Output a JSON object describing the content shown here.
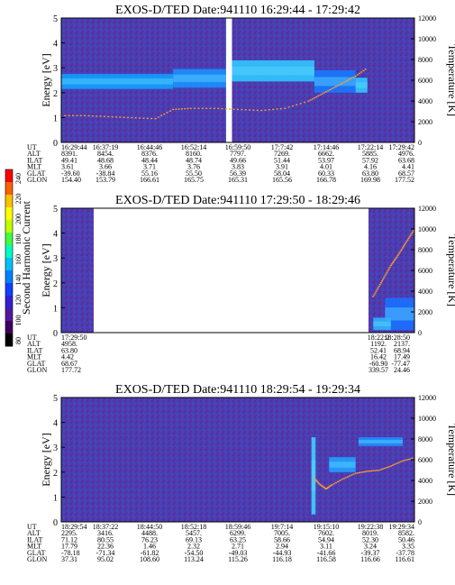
{
  "colorbar": {
    "label": "Second Harmonic Current",
    "ticks": [
      "240",
      "220",
      "200",
      "180",
      "160",
      "140",
      "120",
      "100",
      "80"
    ]
  },
  "panels": [
    {
      "title": "EXOS-D/TED   Date:941110   16:29:44 - 17:29:42",
      "ylabel": "Energy [eV]",
      "y2label": "Temperature [K]",
      "yticks": [
        "5",
        "4",
        "3",
        "2",
        "1",
        "0"
      ],
      "y2ticks": [
        "12000",
        "10000",
        "8000",
        "6000",
        "4000",
        "2000",
        "0"
      ],
      "orbit": {
        "labels": [
          "UT",
          "ALT",
          "ILAT",
          "MLT",
          "GLAT",
          "GLON"
        ],
        "columns": [
          [
            "16:29:44",
            "8391.",
            "49.41",
            "3.61",
            "-39.60",
            "154.40"
          ],
          [
            "16:37:19",
            "8454.",
            "48.68",
            "3.66",
            "-38.84",
            "153.79"
          ],
          [
            "16:44:46",
            "8376.",
            "48.44",
            "3.71",
            "55.16",
            "166.61"
          ],
          [
            "16:52:14",
            "8160.",
            "48.74",
            "3.76",
            "55.50",
            "165.75"
          ],
          [
            "16:59:50",
            "7797.",
            "49.66",
            "3.83",
            "56.39",
            "165.31"
          ],
          [
            "17:7:42",
            "7269.",
            "51.44",
            "3.91",
            "58.04",
            "165.56"
          ],
          [
            "17:14:46",
            "6662.",
            "53.97",
            "4.01",
            "60.33",
            "166.78"
          ],
          [
            "17:22:14",
            "5885.",
            "57.92",
            "4.16",
            "63.80",
            "169.98"
          ],
          [
            "17:29:42",
            "4976.",
            "63.68",
            "4.41",
            "68.57",
            "177.52"
          ]
        ]
      }
    },
    {
      "title": "EXOS-D/TED   Date:941110   17:29:50 - 18:29:46",
      "ylabel": "Energy [eV]",
      "y2label": "Temperature [K]",
      "yticks": [
        "5",
        "4",
        "3",
        "2",
        "1",
        "0"
      ],
      "y2ticks": [
        "12000",
        "10000",
        "8000",
        "6000",
        "4000",
        "2000",
        "0"
      ],
      "orbit": {
        "labels": [
          "UT",
          "ALT",
          "ILAT",
          "MLT",
          "GLAT",
          "GLON"
        ],
        "columns": [
          [
            "17:29:50",
            "4958.",
            "63.80",
            "4.42",
            "68.67",
            "177.72"
          ],
          [
            "18:22:2",
            "1192.",
            "52.41",
            "16.42",
            "-60.90",
            "339.57"
          ],
          [
            "18:28:50",
            "2137.",
            "68.94",
            "17.49",
            "-77.47",
            "24.46"
          ]
        ]
      }
    },
    {
      "title": "EXOS-D/TED   Date:941110   18:29:54 - 19:29:34",
      "ylabel": "Energy [eV]",
      "y2label": "Temperature [K]",
      "yticks": [
        "5",
        "4",
        "3",
        "2",
        "1",
        "0"
      ],
      "y2ticks": [
        "12000",
        "10000",
        "8000",
        "6000",
        "4000",
        "2000",
        "0"
      ],
      "orbit": {
        "labels": [
          "UT",
          "ALT",
          "ILAT",
          "MLT",
          "GLAT",
          "GLON"
        ],
        "columns": [
          [
            "18:29:54",
            "2295.",
            "71.12",
            "17.79",
            "-78.18",
            "37.31"
          ],
          [
            "18:37:22",
            "3416.",
            "80.55",
            "22.36",
            "-71.34",
            "95.02"
          ],
          [
            "18:44:50",
            "4488.",
            "76.23",
            "1.46",
            "-61.82",
            "108.60"
          ],
          [
            "18:52:18",
            "5457.",
            "69.13",
            "2.32",
            "-54.50",
            "113.24"
          ],
          [
            "18:59:46",
            "6299.",
            "63.25",
            "2.71",
            "-49.03",
            "115.26"
          ],
          [
            "19:7:14",
            "7005.",
            "58.66",
            "2.94",
            "-44.93",
            "116.18"
          ],
          [
            "19:15:10",
            "7602.",
            "54.94",
            "3.11",
            "-41.66",
            "116.58"
          ],
          [
            "19:22:38",
            "8019.",
            "52.30",
            "3.24",
            "-39.37",
            "116.66"
          ],
          [
            "19:29:34",
            "8582.",
            "50.46",
            "3.35",
            "-37.78",
            "116.61"
          ]
        ]
      }
    }
  ],
  "chart_data": [
    {
      "type": "heatmap",
      "title": "EXOS-D/TED   Date:941110   16:29:44 - 17:29:42",
      "ylabel": "Energy [eV]",
      "y2label": "Temperature [K]",
      "ylim": [
        0,
        5
      ],
      "y2lim": [
        0,
        12000
      ],
      "x_ticks": [
        "16:29:44",
        "16:37:19",
        "16:44:46",
        "16:52:14",
        "16:59:50",
        "17:7:42",
        "17:14:46",
        "17:22:14",
        "17:29:42"
      ],
      "x_range": [
        0,
        60
      ],
      "bands": [
        {
          "x": [
            0,
            19
          ],
          "e": [
            2.15,
            2.75
          ],
          "color": "#12a0ff"
        },
        {
          "x": [
            19,
            28
          ],
          "e": [
            2.2,
            2.95
          ],
          "color": "#1a90ff"
        },
        {
          "x": [
            29,
            43
          ],
          "e": [
            2.45,
            3.3
          ],
          "color": "#30c8ff"
        },
        {
          "x": [
            43,
            50
          ],
          "e": [
            2.0,
            2.9
          ],
          "color": "#1878ff"
        },
        {
          "x": [
            50,
            52
          ],
          "e": [
            2.0,
            2.6
          ],
          "color": "#30c8ff"
        }
      ],
      "gaps": [
        [
          28,
          29
        ]
      ],
      "temperature": {
        "minutes": [
          0,
          4,
          8,
          12,
          16,
          19,
          22,
          26,
          30,
          34,
          38,
          42,
          44,
          46,
          48,
          50,
          52
        ],
        "kelvin": [
          2600,
          2600,
          2500,
          2400,
          2300,
          3200,
          3300,
          3300,
          3200,
          3100,
          3300,
          4000,
          4600,
          5200,
          5800,
          6400,
          7200
        ]
      }
    },
    {
      "type": "heatmap",
      "title": "EXOS-D/TED   Date:941110   17:29:50 - 18:29:46",
      "ylabel": "Energy [eV]",
      "y2label": "Temperature [K]",
      "ylim": [
        0,
        5
      ],
      "y2lim": [
        0,
        12000
      ],
      "x_ticks": [
        "17:29:50",
        "18:22:2",
        "18:28:50"
      ],
      "x_range": [
        0,
        60
      ],
      "data_segments": [
        [
          0,
          5.5
        ],
        [
          52.2,
          60
        ]
      ],
      "bands": [
        {
          "x": [
            55,
            60
          ],
          "e": [
            0.1,
            1.4
          ],
          "color": "#1a70ff"
        },
        {
          "x": [
            53,
            56
          ],
          "e": [
            0.1,
            0.6
          ],
          "color": "#30b0ff"
        }
      ],
      "temperature": {
        "minutes": [
          53,
          54,
          55,
          56,
          57,
          58,
          59,
          60
        ],
        "kelvin": [
          3500,
          4500,
          5500,
          6500,
          7300,
          8200,
          9100,
          10000
        ]
      }
    },
    {
      "type": "heatmap",
      "title": "EXOS-D/TED   Date:941110   18:29:54 - 19:29:34",
      "ylabel": "Energy [eV]",
      "y2label": "Temperature [K]",
      "ylim": [
        0,
        5
      ],
      "y2lim": [
        0,
        12000
      ],
      "x_ticks": [
        "18:29:54",
        "18:37:22",
        "18:44:50",
        "18:52:18",
        "18:59:46",
        "19:7:14",
        "19:15:10",
        "19:22:38",
        "19:29:34"
      ],
      "x_range": [
        0,
        60
      ],
      "bands": [
        {
          "x": [
            42.5,
            43.2
          ],
          "e": [
            0.3,
            3.4
          ],
          "color": "#40d0ff"
        },
        {
          "x": [
            45.5,
            50
          ],
          "e": [
            2.0,
            2.6
          ],
          "color": "#22a0ff"
        },
        {
          "x": [
            50.5,
            58
          ],
          "e": [
            3.05,
            3.4
          ],
          "color": "#1e90ff"
        }
      ],
      "temperature": {
        "minutes": [
          43,
          44,
          45,
          46,
          48,
          50,
          52,
          54,
          56,
          58,
          60
        ],
        "kelvin": [
          4200,
          3600,
          3200,
          3600,
          4200,
          4700,
          4900,
          5000,
          5400,
          5900,
          6200
        ]
      }
    }
  ]
}
